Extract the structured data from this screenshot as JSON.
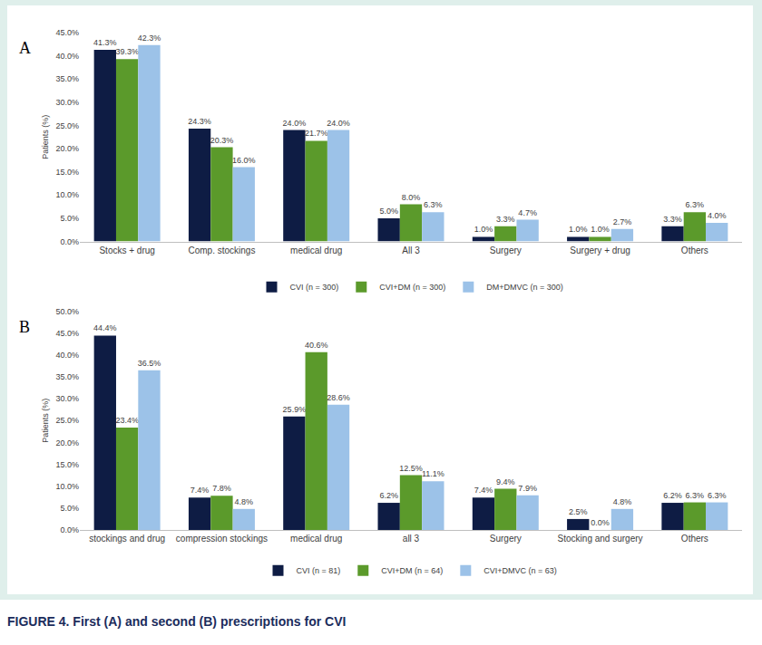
{
  "caption": "FIGURE 4. First (A) and second (B) prescriptions for CVI",
  "chart_data": [
    {
      "type": "bar",
      "title": "A",
      "y_label": "Patients (%)",
      "categories": [
        "Stocks + drug",
        "Comp. stockings",
        "medical drug",
        "All 3",
        "Surgery",
        "Surgery + drug",
        "Others"
      ],
      "series": [
        {
          "name": "CVI (n = 300)",
          "color": "#0e1c44",
          "values": [
            41.3,
            24.3,
            24.0,
            5.0,
            1.0,
            1.0,
            3.3
          ],
          "value_labels": [
            "41.3%",
            "24.3%",
            "24.0%",
            "5.0%",
            "1.0%",
            "1.0%",
            "3.3%"
          ]
        },
        {
          "name": "CVI+DM (n = 300)",
          "color": "#5b9a2b",
          "values": [
            39.3,
            20.3,
            21.7,
            8.0,
            3.3,
            1.0,
            6.3
          ],
          "value_labels": [
            "39.3%",
            "20.3%",
            "21.7%",
            "8.0%",
            "3.3%",
            "1.0%",
            "6.3%"
          ]
        },
        {
          "name": "DM+DMVC (n = 300)",
          "color": "#9cc2e8",
          "values": [
            42.3,
            16.0,
            24.0,
            6.3,
            4.7,
            2.7,
            4.0
          ],
          "value_labels": [
            "42.3%",
            "16.0%",
            "24.0%",
            "6.3%",
            "4.7%",
            "2.7%",
            "4.0%"
          ]
        }
      ],
      "ylim": [
        0,
        45
      ],
      "yticks": [
        {
          "value": 0,
          "label": "0.0%"
        },
        {
          "value": 5,
          "label": "5.0%"
        },
        {
          "value": 10,
          "label": "10.0%"
        },
        {
          "value": 15,
          "label": "15.0%"
        },
        {
          "value": 20,
          "label": "20.0%"
        },
        {
          "value": 25,
          "label": "25.0%"
        },
        {
          "value": 30,
          "label": "30.0%"
        },
        {
          "value": 35,
          "label": "35.0%"
        },
        {
          "value": 40,
          "label": "40.0%"
        },
        {
          "value": 45,
          "label": "45.0%"
        }
      ],
      "grid": false,
      "legend": "bottom",
      "data_labels": true
    },
    {
      "type": "bar",
      "title": "B",
      "y_label": "Patients (%)",
      "categories": [
        "stockings and drug",
        "compression stockings",
        "medical drug",
        "all 3",
        "Surgery",
        "Stocking and surgery",
        "Others"
      ],
      "series": [
        {
          "name": "CVI (n = 81)",
          "color": "#0e1c44",
          "values": [
            44.4,
            7.4,
            25.9,
            6.2,
            7.4,
            2.5,
            6.2
          ],
          "value_labels": [
            "44.4%",
            "7.4%",
            "25.9%",
            "6.2%",
            "7.4%",
            "2.5%",
            "6.2%"
          ]
        },
        {
          "name": "CVI+DM (n = 64)",
          "color": "#5b9a2b",
          "values": [
            23.4,
            7.8,
            40.6,
            12.5,
            9.4,
            0.0,
            6.3
          ],
          "value_labels": [
            "23.4%",
            "7.8%",
            "40.6%",
            "12.5%",
            "9.4%",
            "0.0%",
            "6.3%"
          ]
        },
        {
          "name": "CVI+DMVC (n = 63)",
          "color": "#9cc2e8",
          "values": [
            36.5,
            4.8,
            28.6,
            11.1,
            7.9,
            4.8,
            6.3
          ],
          "value_labels": [
            "36.5%",
            "4.8%",
            "28.6%",
            "11.1%",
            "7.9%",
            "4.8%",
            "6.3%"
          ]
        }
      ],
      "ylim": [
        0,
        50
      ],
      "yticks": [
        {
          "value": 0,
          "label": "0.0%"
        },
        {
          "value": 5,
          "label": "5.0%"
        },
        {
          "value": 10,
          "label": "10.0%"
        },
        {
          "value": 15,
          "label": "15.0%"
        },
        {
          "value": 20,
          "label": "20.0%"
        },
        {
          "value": 25,
          "label": "25.0%"
        },
        {
          "value": 30,
          "label": "30.0%"
        },
        {
          "value": 35,
          "label": "35.0%"
        },
        {
          "value": 40,
          "label": "40.0%"
        },
        {
          "value": 45,
          "label": "45.0%"
        },
        {
          "value": 50,
          "label": "50.0%"
        }
      ],
      "grid": false,
      "legend": "bottom",
      "data_labels": true
    }
  ]
}
